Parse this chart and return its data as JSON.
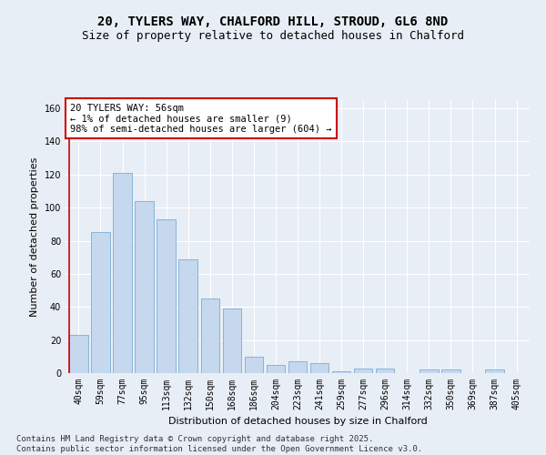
{
  "title1": "20, TYLERS WAY, CHALFORD HILL, STROUD, GL6 8ND",
  "title2": "Size of property relative to detached houses in Chalford",
  "xlabel": "Distribution of detached houses by size in Chalford",
  "ylabel": "Number of detached properties",
  "categories": [
    "40sqm",
    "59sqm",
    "77sqm",
    "95sqm",
    "113sqm",
    "132sqm",
    "150sqm",
    "168sqm",
    "186sqm",
    "204sqm",
    "223sqm",
    "241sqm",
    "259sqm",
    "277sqm",
    "296sqm",
    "314sqm",
    "332sqm",
    "350sqm",
    "369sqm",
    "387sqm",
    "405sqm"
  ],
  "values": [
    23,
    85,
    121,
    104,
    93,
    69,
    45,
    39,
    10,
    5,
    7,
    6,
    1,
    3,
    3,
    0,
    2,
    2,
    0,
    2,
    0
  ],
  "bar_color": "#c5d8ee",
  "bar_edge_color": "#7aadd4",
  "highlight_line_color": "#cc0000",
  "annotation_text": "20 TYLERS WAY: 56sqm\n← 1% of detached houses are smaller (9)\n98% of semi-detached houses are larger (604) →",
  "annotation_box_color": "#ffffff",
  "annotation_box_edge": "#cc0000",
  "ylim": [
    0,
    165
  ],
  "yticks": [
    0,
    20,
    40,
    60,
    80,
    100,
    120,
    140,
    160
  ],
  "footer": "Contains HM Land Registry data © Crown copyright and database right 2025.\nContains public sector information licensed under the Open Government Licence v3.0.",
  "bg_color": "#e8eef5",
  "plot_bg_color": "#e8eef5",
  "title_fontsize": 10,
  "subtitle_fontsize": 9,
  "axis_label_fontsize": 8,
  "tick_fontsize": 7,
  "annotation_fontsize": 7.5,
  "footer_fontsize": 6.5
}
